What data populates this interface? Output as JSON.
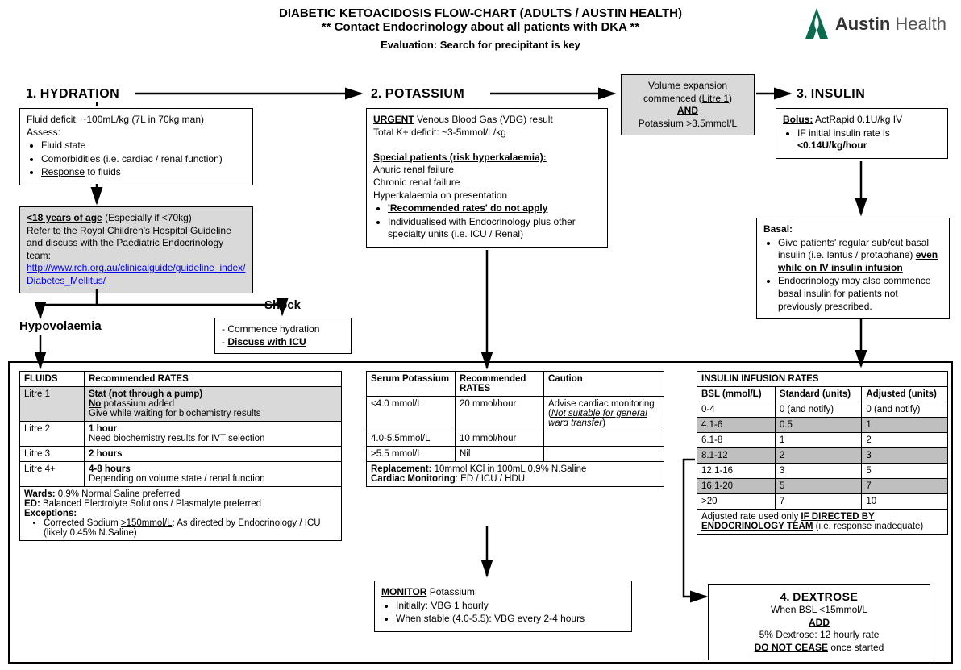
{
  "brand": {
    "name1": "Austin",
    "name2": " Health",
    "logo_color": "#0b6b4f"
  },
  "header": {
    "title": "DIABETIC KETOACIDOSIS FLOW-CHART (ADULTS / AUSTIN HEALTH)",
    "subtitle": "** Contact Endocrinology about all patients with DKA **",
    "eval_label": "Evaluation",
    "eval_text": ": Search for precipitant is key"
  },
  "sections": {
    "s1": {
      "num": "1.",
      "title": "HYDRATION"
    },
    "s2": {
      "num": "2.",
      "title": "POTASSIUM"
    },
    "s3": {
      "num": "3.",
      "title": "INSULIN"
    },
    "s4": {
      "num": "4.",
      "title": "DEXTROSE"
    }
  },
  "hydration": {
    "line1": "Fluid deficit: ~100mL/kg (7L in 70kg man)",
    "assess": "Assess:",
    "items": [
      "Fluid state",
      "Comorbidities (i.e. cardiac / renal function)"
    ],
    "item3_pre": "Response",
    "item3_post": " to fluids"
  },
  "paeds": {
    "line1_pre": "<18 years of age",
    "line1_post": " (Especially if <70kg)",
    "line2": "Refer to the Royal Children's Hospital Guideline and discuss with the Paediatric Endocrinology team:",
    "link": "http://www.rch.org.au/clinicalguide/guideline_index/Diabetes_Mellitus/"
  },
  "hypovolaemia_label": "Hypovolaemia",
  "shock_label": "Shock",
  "shock_box": {
    "line1": "- Commence hydration",
    "line2_pre": "- ",
    "line2_txt": "Discuss with ICU"
  },
  "potassium": {
    "urgent_label": "URGENT",
    "urgent_post": " Venous Blood Gas (VBG) result",
    "deficit": "Total K+ deficit: ~3-5mmol/L/kg",
    "special_label": "Special patients (risk hyperkalaemia):",
    "sp1": "Anuric renal failure",
    "sp2": "Chronic renal failure",
    "sp3": "Hyperkalaemia on presentation",
    "b1_pre": "'Recommended rates' do not apply",
    "b2": "Individualised with Endocrinology plus other specialty units (i.e. ICU / Renal)"
  },
  "vol_expansion": {
    "l1": "Volume expansion",
    "l2_pre": "commenced (",
    "l2_u": "Litre 1",
    "l2_post": ")",
    "and": "AND",
    "l3": "Potassium >3.5mmol/L"
  },
  "insulin_bolus": {
    "lbl": "Bolus:",
    "txt": " ActRapid 0.1U/kg IV",
    "b1_pre": "IF initial insulin rate is",
    "b1_bold": "<0.14U/kg/hour"
  },
  "insulin_basal": {
    "lbl": "Basal:",
    "b1_pre": "Give patients' regular sub/cut basal insulin (i.e. lantus / protaphane) ",
    "b1_u": "even while on IV insulin infusion",
    "b2": "Endocrinology may also commence basal insulin for patients not previously prescribed."
  },
  "fluids_table": {
    "h1": "FLUIDS",
    "h2": "Recommended RATES",
    "rows": [
      {
        "c1": "Litre 1",
        "c2_bold": "Stat (not through a pump)",
        "c2_line2_pre": "No",
        "c2_line2_post": " potassium added",
        "c2_line3": "Give while waiting for biochemistry results",
        "gray": true
      },
      {
        "c1": "Litre 2",
        "c2_bold": "1 hour",
        "c2_line2": "Need biochemistry results for IVT selection"
      },
      {
        "c1": "Litre 3",
        "c2_bold": "2 hours"
      },
      {
        "c1": "Litre 4+",
        "c2_bold": "4-8 hours",
        "c2_line2": "Depending on volume state / renal function"
      }
    ],
    "footer": {
      "wards_lbl": "Wards:",
      "wards_txt": " 0.9% Normal Saline preferred",
      "ed_lbl": "ED:",
      "ed_txt": " Balanced Electrolyte Solutions / Plasmalyte preferred",
      "exc_lbl": "Exceptions:",
      "exc_b_pre": "Corrected Sodium ",
      "exc_b_u": ">150mmol/L",
      "exc_b_post": ": As directed by Endocrinology / ICU (likely 0.45% N.Saline)"
    }
  },
  "potassium_table": {
    "h1": "Serum Potassium",
    "h2": "Recommended RATES",
    "h3": "Caution",
    "rows": [
      {
        "c1": "<4.0 mmol/L",
        "c2": "20 mmol/hour",
        "c3_pre": "Advise cardiac monitoring (",
        "c3_i": "Not suitable for general ward transfer",
        "c3_post": ")"
      },
      {
        "c1": "4.0-5.5mmol/L",
        "c2": "10 mmol/hour",
        "c3": ""
      },
      {
        "c1": ">5.5 mmol/L",
        "c2": "Nil",
        "c3": ""
      }
    ],
    "repl_lbl": "Replacement:",
    "repl_txt": " 10mmol KCl in 100mL 0.9% N.Saline",
    "mon_lbl": "Cardiac Monitoring",
    "mon_txt": ": ED / ICU / HDU"
  },
  "monitor_k": {
    "lbl": "MONITOR",
    "lbl_post": " Potassium:",
    "b1": "Initially: VBG 1 hourly",
    "b2": "When stable (4.0-5.5): VBG every 2-4 hours"
  },
  "insulin_table": {
    "title": "INSULIN INFUSION RATES",
    "h1": "BSL (mmol/L)",
    "h2": "Standard (units)",
    "h3": "Adjusted (units)",
    "rows": [
      {
        "c1": "0-4",
        "c2": "0 (and notify)",
        "c3": "0 (and notify)",
        "gray": false
      },
      {
        "c1": "4.1-6",
        "c2": "0.5",
        "c3": "1",
        "gray": true
      },
      {
        "c1": "6.1-8",
        "c2": "1",
        "c3": "2",
        "gray": false
      },
      {
        "c1": "8.1-12",
        "c2": "2",
        "c3": "3",
        "gray": true
      },
      {
        "c1": "12.1-16",
        "c2": "3",
        "c3": "5",
        "gray": false
      },
      {
        "c1": "16.1-20",
        "c2": "5",
        "c3": "7",
        "gray": true
      },
      {
        "c1": ">20",
        "c2": "7",
        "c3": "10",
        "gray": false
      }
    ],
    "footer_pre": "Adjusted rate used only ",
    "footer_u": "IF DIRECTED BY ENDOCRINOLOGY TEAM",
    "footer_post": " (i.e. response inadequate)"
  },
  "dextrose": {
    "l1_pre": "When BSL ",
    "l1_u": "<",
    "l1_post": "15mmol/L",
    "add": "ADD",
    "l2": "5% Dextrose: 12 hourly rate",
    "l3": "DO NOT CEASE",
    "l3_post": " once started"
  },
  "colors": {
    "box_gray": "#d9d9d9",
    "row_gray": "#bfbfbf",
    "link": "#0000ee"
  }
}
